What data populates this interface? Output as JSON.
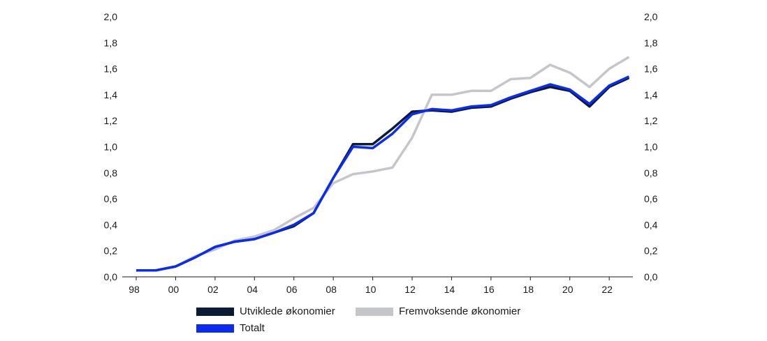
{
  "chart_data": {
    "type": "line",
    "x": [
      1998,
      1999,
      2000,
      2001,
      2002,
      2003,
      2004,
      2005,
      2006,
      2007,
      2008,
      2009,
      2010,
      2011,
      2012,
      2013,
      2014,
      2015,
      2016,
      2017,
      2018,
      2019,
      2020,
      2021,
      2022,
      2023
    ],
    "x_tick_labels": [
      "98",
      "00",
      "02",
      "04",
      "06",
      "08",
      "10",
      "12",
      "14",
      "16",
      "18",
      "20",
      "22"
    ],
    "x_tick_values": [
      1998,
      2000,
      2002,
      2004,
      2006,
      2008,
      2010,
      2012,
      2014,
      2016,
      2018,
      2020,
      2022
    ],
    "y_tick_labels": [
      "0,0",
      "0,2",
      "0,4",
      "0,6",
      "0,8",
      "1,0",
      "1,2",
      "1,4",
      "1,6",
      "1,8",
      "2,0"
    ],
    "ylim": [
      0,
      2.0
    ],
    "xlim": [
      1998,
      2023.2
    ],
    "grid": false,
    "legend_position": "bottom",
    "series": [
      {
        "name": "Utviklede økonomier",
        "color": "#0b1a36",
        "values": [
          0.05,
          0.05,
          0.08,
          0.15,
          0.23,
          0.27,
          0.29,
          0.34,
          0.39,
          0.49,
          0.76,
          1.02,
          1.02,
          1.14,
          1.27,
          1.28,
          1.27,
          1.3,
          1.31,
          1.37,
          1.42,
          1.46,
          1.43,
          1.31,
          1.46,
          1.53
        ]
      },
      {
        "name": "Fremvoksende økonomier",
        "color": "#c4c6cc",
        "values": [
          0.05,
          0.05,
          0.08,
          0.16,
          0.21,
          0.28,
          0.31,
          0.36,
          0.45,
          0.53,
          0.72,
          0.79,
          0.81,
          0.84,
          1.07,
          1.4,
          1.4,
          1.43,
          1.43,
          1.52,
          1.53,
          1.63,
          1.57,
          1.46,
          1.6,
          1.69
        ]
      },
      {
        "name": "Totalt",
        "color": "#0a2bf2",
        "values": [
          0.05,
          0.05,
          0.08,
          0.15,
          0.23,
          0.27,
          0.29,
          0.34,
          0.4,
          0.49,
          0.76,
          1.0,
          0.99,
          1.1,
          1.25,
          1.29,
          1.28,
          1.31,
          1.32,
          1.38,
          1.43,
          1.48,
          1.44,
          1.33,
          1.47,
          1.54
        ]
      }
    ]
  }
}
